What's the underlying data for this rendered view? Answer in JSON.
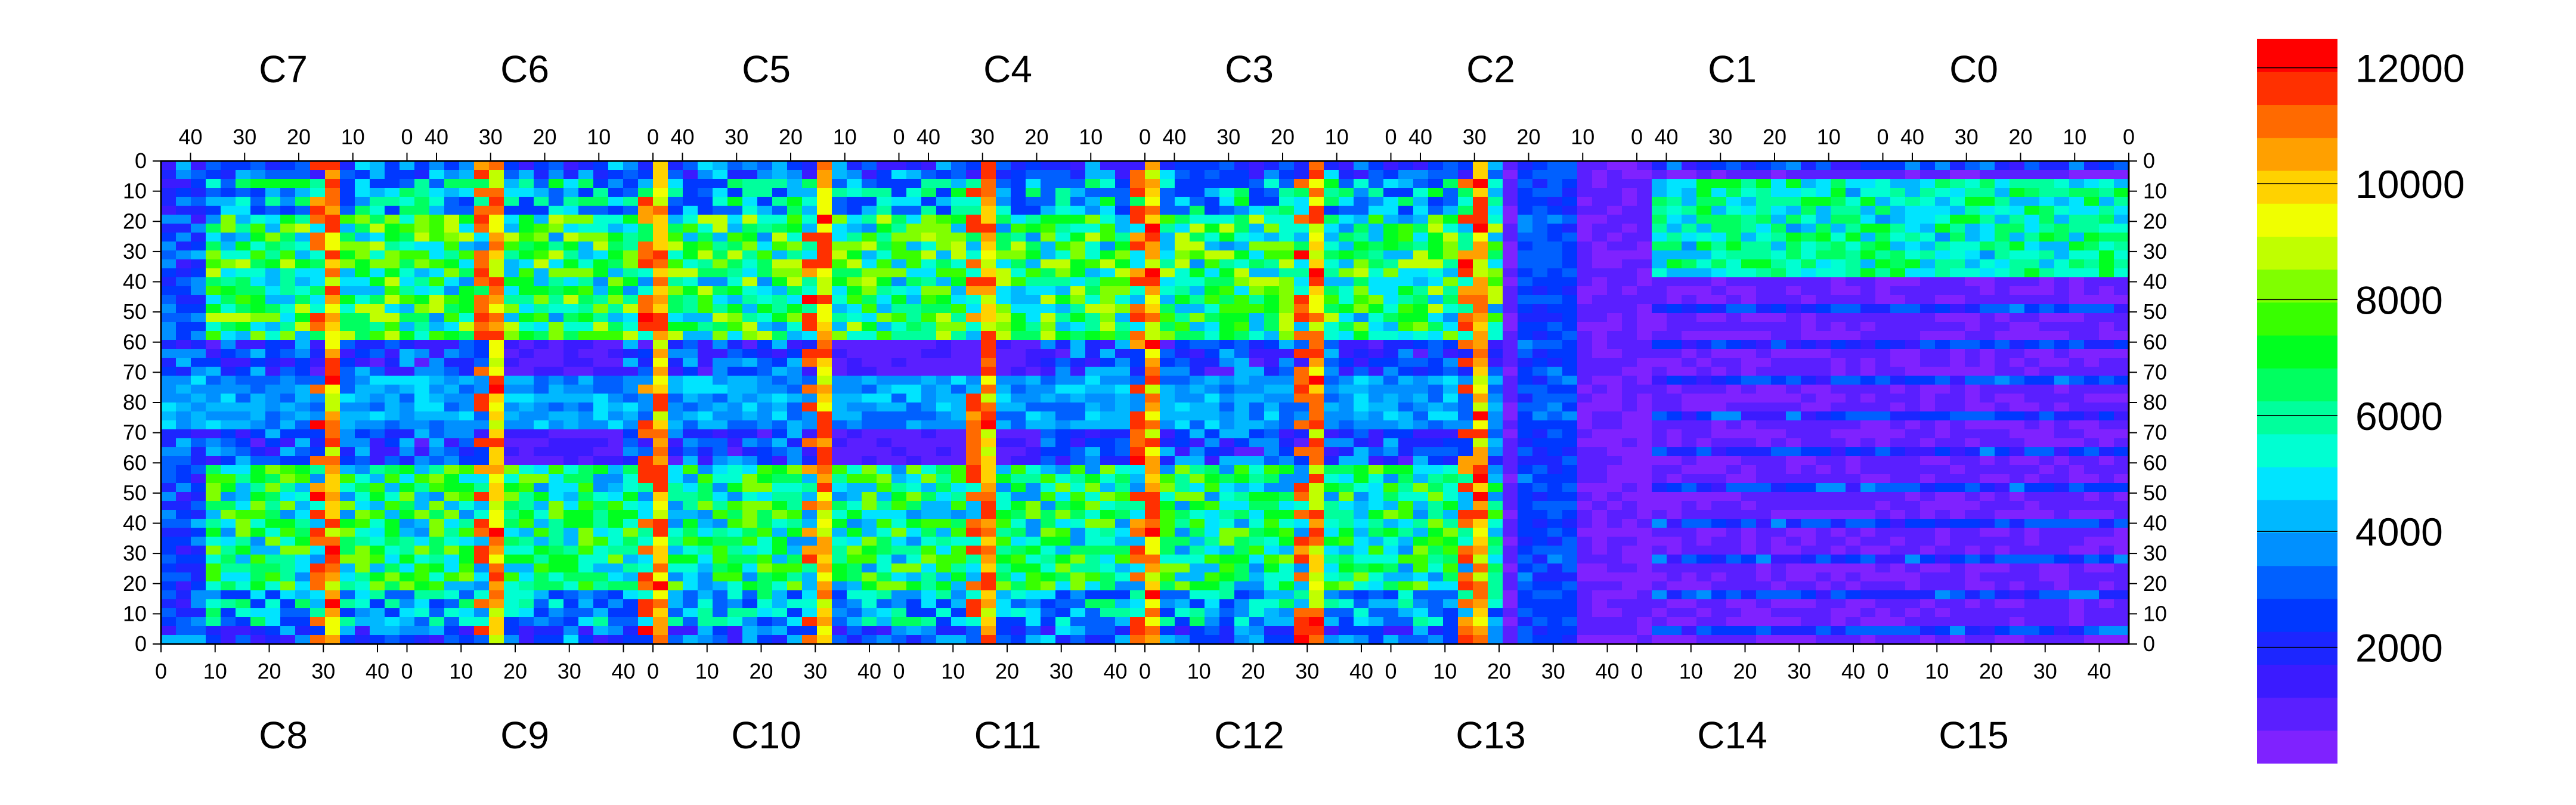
{
  "chart_data": {
    "type": "heatmap",
    "title": "",
    "chip_labels_top": [
      "C7",
      "C6",
      "C5",
      "C4",
      "C3",
      "C2",
      "C1",
      "C0"
    ],
    "chip_labels_bottom": [
      "C8",
      "C9",
      "C10",
      "C11",
      "C12",
      "C13",
      "C14",
      "C15"
    ],
    "x_ticks_top": [
      "40",
      "30",
      "20",
      "10",
      "0"
    ],
    "x_ticks_bottom": [
      "0",
      "10",
      "20",
      "30",
      "40"
    ],
    "y_ticks_top_half": [
      "0",
      "10",
      "20",
      "30",
      "40",
      "50",
      "60",
      "70",
      "80"
    ],
    "y_ticks_bottom_half": [
      "70",
      "60",
      "50",
      "40",
      "30",
      "20",
      "10",
      "0"
    ],
    "color_scale": {
      "min": 0,
      "max": 12500,
      "tick_labels": [
        "2000",
        "4000",
        "6000",
        "8000",
        "10000",
        "12000"
      ],
      "colors": [
        "#7f22ff",
        "#5a1fff",
        "#3b1bff",
        "#1c26ff",
        "#0038ff",
        "#0060ff",
        "#0090ff",
        "#00b8ff",
        "#00e4ff",
        "#00ffd2",
        "#00ff9c",
        "#00ff60",
        "#00ff20",
        "#38ff00",
        "#80ff00",
        "#c0ff00",
        "#f0ff00",
        "#ffd200",
        "#ffa000",
        "#ff6a00",
        "#ff3000",
        "#ff0000"
      ]
    },
    "region_levels": {
      "upper_left_band": 7000,
      "lower_left_band": 6500,
      "edge_columns": 11500,
      "central_block": 1000,
      "right_dead_zone": 500,
      "right_upper_block": 6000,
      "right_rows": 3000
    },
    "grid": false,
    "legend": "right"
  }
}
